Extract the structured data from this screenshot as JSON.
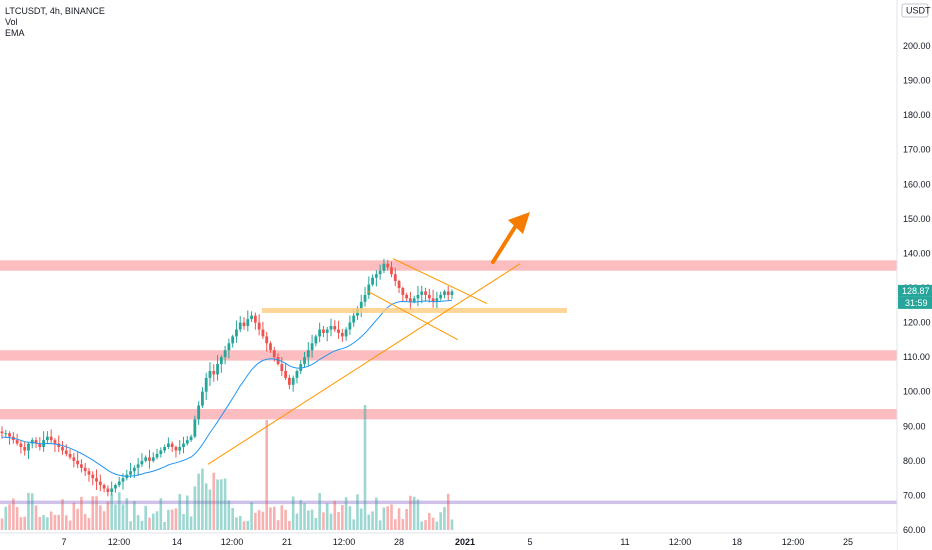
{
  "legend": {
    "symbol_line": "LTCUSDT, 4h, BINANCE",
    "vol_label": "Vol",
    "ema_label": "EMA"
  },
  "currency_badge": "USDT",
  "price_tag": "128.87",
  "countdown_tag": "31:59",
  "colors": {
    "up": "#26a69a",
    "down": "#ef5350",
    "ema": "#2196f3",
    "zone": "#f77c80",
    "trendline": "#ff9800",
    "arrow": "#f57c00",
    "volume_ma_band": "#9575cd"
  },
  "chart_data": {
    "type": "candlestick",
    "symbol": "LTCUSDT",
    "interval": "4h",
    "exchange": "BINANCE",
    "ylim": [
      60,
      212
    ],
    "y_ticks": [
      60,
      70,
      80,
      90,
      100,
      110,
      120,
      130,
      140,
      150,
      160,
      170,
      180,
      190,
      200
    ],
    "x_tick_labels": [
      "7",
      "12:00",
      "14",
      "12:00",
      "21",
      "12:00",
      "28",
      "2021",
      "5",
      "11",
      "12:00",
      "18",
      "12:00",
      "25"
    ],
    "last_price": 128.87,
    "ohlc_closes_approx": [
      88,
      88,
      87,
      86,
      85,
      84,
      83,
      85,
      86,
      85,
      84,
      86,
      87,
      86,
      85,
      84,
      83,
      82,
      81,
      80,
      79,
      78,
      77,
      76,
      75,
      74,
      73,
      72,
      71,
      72,
      73,
      74,
      75,
      76,
      77,
      78,
      79,
      80,
      81,
      80,
      81,
      82,
      83,
      84,
      85,
      84,
      83,
      84,
      85,
      86,
      87,
      92,
      96,
      100,
      104,
      106,
      105,
      108,
      110,
      112,
      114,
      116,
      118,
      120,
      119,
      121,
      122,
      120,
      118,
      116,
      114,
      112,
      110,
      108,
      106,
      104,
      102,
      104,
      106,
      108,
      110,
      112,
      114,
      116,
      118,
      117,
      118,
      119,
      118,
      117,
      116,
      118,
      120,
      122,
      124,
      126,
      128,
      131,
      133,
      134,
      135,
      137,
      136,
      134,
      132,
      130,
      128,
      127,
      126,
      127,
      128,
      129,
      128,
      127,
      126,
      127,
      128,
      129,
      128,
      129
    ],
    "zones": [
      {
        "label": "resistance",
        "low": 135,
        "high": 138
      },
      {
        "label": "support-1",
        "low": 109,
        "high": 112
      },
      {
        "label": "support-2",
        "low": 92,
        "high": 95
      },
      {
        "label": "volume-ma-band",
        "low": 67.5,
        "high": 68.5
      }
    ],
    "horizontal_level": 123.5,
    "ema_shown": true,
    "volume_shown": true,
    "grid": false,
    "annotation": "upward arrow (bullish projection)"
  }
}
